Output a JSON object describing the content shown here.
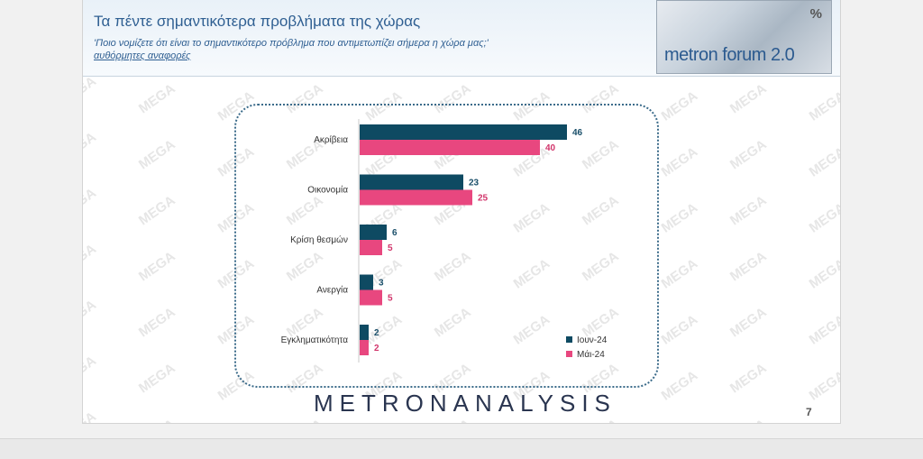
{
  "header": {
    "title": "Τα πέντε σημαντικότερα προβλήματα της χώρας",
    "question": "'Ποιο νομίζετε ότι είναι το σημαντικότερο πρόβλημα που αντιμετωπίζει σήμερα η χώρα μας;'",
    "note": "αυθόρμητες αναφορές"
  },
  "logo": {
    "text": "metron forum 2.0",
    "unit": "%"
  },
  "watermark_text": "MEGA",
  "footer": {
    "brand": "METRONANALYSIS",
    "page": "7"
  },
  "colors": {
    "series1": "#0e4a62",
    "series2": "#e8477f",
    "series2_label": "#d1356b",
    "series1_label": "#1a4f6a"
  },
  "chart_data": {
    "type": "bar",
    "orientation": "horizontal",
    "categories": [
      "Ακρίβεια",
      "Οικονομία",
      "Κρίση θεσμών",
      "Ανεργία",
      "Εγκληματικότητα"
    ],
    "series": [
      {
        "name": "Ιουν-24",
        "values": [
          46,
          23,
          6,
          3,
          2
        ]
      },
      {
        "name": "Μάι-24",
        "values": [
          40,
          25,
          5,
          5,
          2
        ]
      }
    ],
    "xlim": [
      0,
      50
    ],
    "grid": false,
    "legend_position": "bottom-right",
    "title": "",
    "xlabel": "",
    "ylabel": ""
  }
}
